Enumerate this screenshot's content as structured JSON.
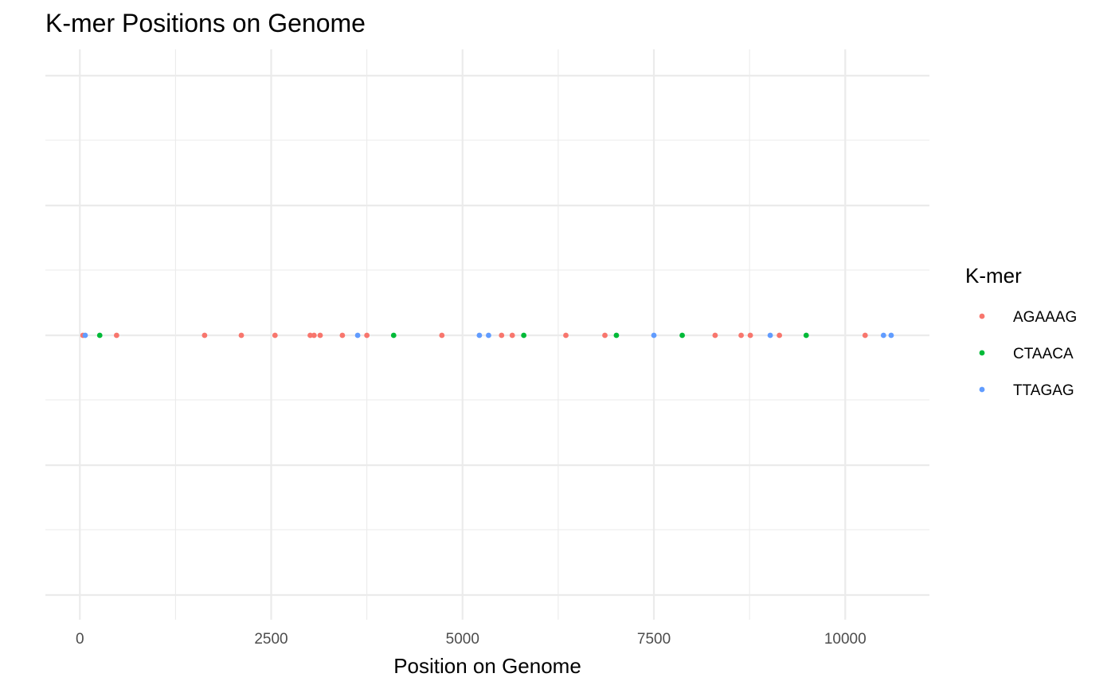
{
  "chart_data": {
    "type": "scatter",
    "title": "K-mer Positions on Genome",
    "xlabel": "Position on Genome",
    "ylabel": "",
    "xlim": [
      -450,
      11100
    ],
    "x_ticks": [
      0,
      2500,
      5000,
      7500,
      10000
    ],
    "x_minor_ticks": [
      1250,
      3750,
      6250,
      8750
    ],
    "y_ticks_shown": false,
    "grid": true,
    "legend": {
      "title": "K-mer",
      "position": "right"
    },
    "series": [
      {
        "name": "AGAAAG",
        "color": "#F8766D",
        "x": [
          40,
          480,
          1630,
          2110,
          2550,
          3010,
          3060,
          3140,
          3430,
          3750,
          4730,
          5510,
          5650,
          6350,
          6860,
          8300,
          8640,
          8760,
          9140,
          10260
        ]
      },
      {
        "name": "CTAACA",
        "color": "#00BA38",
        "x": [
          260,
          4100,
          5800,
          7010,
          7870,
          9490
        ]
      },
      {
        "name": "TTAGAG",
        "color": "#619CFF",
        "x": [
          70,
          3630,
          5220,
          5340,
          7500,
          9020,
          10500,
          10600
        ]
      }
    ]
  }
}
